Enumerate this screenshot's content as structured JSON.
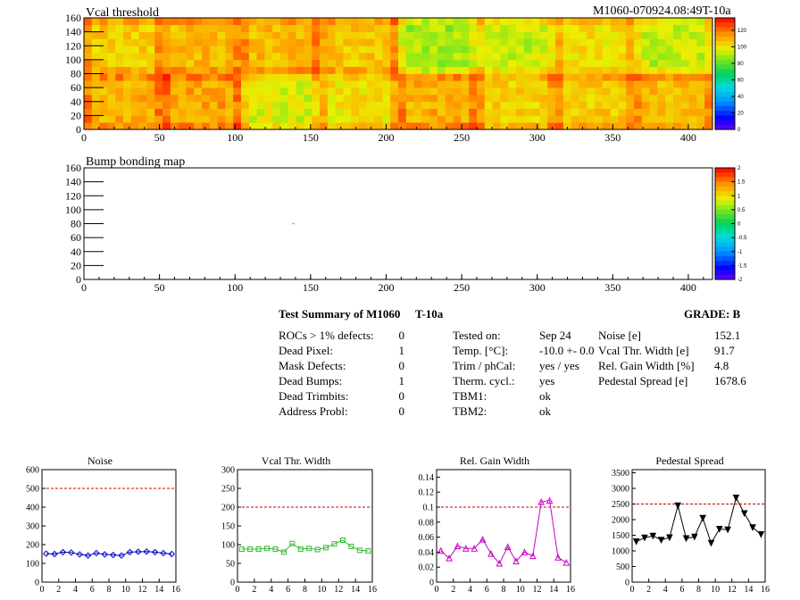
{
  "module_id": "M1060-070924.08:49T-10a",
  "summary": {
    "title": "Test Summary of M1060",
    "test_label": "T-10a",
    "grade": "GRADE:  B",
    "left": [
      {
        "label": "ROCs > 1% defects:",
        "value": "0"
      },
      {
        "label": "Dead Pixel:",
        "value": "1"
      },
      {
        "label": "Mask Defects:",
        "value": "0"
      },
      {
        "label": "Dead Bumps:",
        "value": "1"
      },
      {
        "label": "Dead Trimbits:",
        "value": "0"
      },
      {
        "label": "Address Probl:",
        "value": "0"
      }
    ],
    "middle": [
      {
        "label": "Tested on:",
        "value": "Sep 24"
      },
      {
        "label": "Temp. [°C]:",
        "value": "-10.0 +- 0.0"
      },
      {
        "label": "Trim / phCal:",
        "value": "yes / yes"
      },
      {
        "label": "Therm. cycl.:",
        "value": "yes"
      },
      {
        "label": "TBM1:",
        "value": "ok"
      },
      {
        "label": "TBM2:",
        "value": "ok"
      }
    ],
    "right": [
      {
        "label": "Noise [e]",
        "value": "152.1"
      },
      {
        "label": "Vcal Thr. Width [e]",
        "value": "91.7"
      },
      {
        "label": "Rel. Gain Width [%]",
        "value": "4.8"
      },
      {
        "label": "Pedestal Spread [e]",
        "value": "1678.6"
      }
    ]
  },
  "chart_data": [
    {
      "type": "heatmap",
      "title": "Vcal threshold",
      "x_ticks": [
        0,
        50,
        100,
        150,
        200,
        250,
        300,
        350,
        400
      ],
      "y_ticks": [
        0,
        20,
        40,
        60,
        80,
        100,
        120,
        140,
        160
      ],
      "xlim": [
        0,
        416
      ],
      "ylim": [
        0,
        160
      ],
      "colorbar": {
        "ticks": [
          "0",
          "20",
          "40",
          "60",
          "80",
          "100",
          "120"
        ],
        "range": [
          0,
          135
        ]
      },
      "roc_means": [
        [
          110,
          112,
          95,
          100,
          110,
          103,
          105,
          107
        ],
        [
          105,
          108,
          108,
          106,
          88,
          93,
          100,
          92
        ]
      ]
    },
    {
      "type": "heatmap",
      "title": "Bump bonding map",
      "x_ticks": [
        0,
        50,
        100,
        150,
        200,
        250,
        300,
        350,
        400
      ],
      "y_ticks": [
        0,
        20,
        40,
        60,
        80,
        100,
        120,
        140,
        160
      ],
      "xlim": [
        0,
        416
      ],
      "ylim": [
        0,
        160
      ],
      "colorbar": {
        "ticks": [
          "2",
          "1.5",
          "1",
          "0.5",
          "0",
          "-0.5",
          "-1",
          "-1.5",
          "-2"
        ],
        "range": [
          -2,
          2
        ]
      },
      "points": [
        {
          "x": 138,
          "y": 80,
          "value": 0.2
        }
      ]
    },
    {
      "type": "line",
      "title": "Noise",
      "x_ticks": [
        0,
        2,
        4,
        6,
        8,
        10,
        12,
        14,
        16
      ],
      "y_ticks": [
        0,
        100,
        200,
        300,
        400,
        500,
        600
      ],
      "xlim": [
        0,
        16
      ],
      "ylim": [
        0,
        600
      ],
      "threshold": 500,
      "color": "#0000cc",
      "marker": "diamond",
      "x": [
        0.5,
        1.5,
        2.5,
        3.5,
        4.5,
        5.5,
        6.5,
        7.5,
        8.5,
        9.5,
        10.5,
        11.5,
        12.5,
        13.5,
        14.5,
        15.5
      ],
      "values": [
        152,
        150,
        160,
        158,
        148,
        142,
        155,
        148,
        145,
        142,
        160,
        162,
        163,
        160,
        155,
        150
      ]
    },
    {
      "type": "line",
      "title": "Vcal Thr. Width",
      "x_ticks": [
        0,
        2,
        4,
        6,
        8,
        10,
        12,
        14,
        16
      ],
      "y_ticks": [
        0,
        50,
        100,
        150,
        200,
        250,
        300
      ],
      "xlim": [
        0,
        16
      ],
      "ylim": [
        0,
        300
      ],
      "threshold": 200,
      "color": "#33bb33",
      "marker": "square",
      "x": [
        0.5,
        1.5,
        2.5,
        3.5,
        4.5,
        5.5,
        6.5,
        7.5,
        8.5,
        9.5,
        10.5,
        11.5,
        12.5,
        13.5,
        14.5,
        15.5
      ],
      "values": [
        88,
        88,
        88,
        90,
        88,
        80,
        103,
        88,
        90,
        87,
        92,
        102,
        112,
        95,
        85,
        83
      ]
    },
    {
      "type": "line",
      "title": "Rel. Gain Width",
      "x_ticks": [
        0,
        2,
        4,
        6,
        8,
        10,
        12,
        14,
        16
      ],
      "y_ticks": [
        "0",
        "0.02",
        "0.04",
        "0.06",
        "0.08",
        "0.1",
        "0.12",
        "0.14"
      ],
      "xlim": [
        0,
        16
      ],
      "ylim": [
        0,
        0.15
      ],
      "threshold": 0.1,
      "color": "#cc00cc",
      "marker": "triangle",
      "x": [
        0.5,
        1.5,
        2.5,
        3.5,
        4.5,
        5.5,
        6.5,
        7.5,
        8.5,
        9.5,
        10.5,
        11.5,
        12.5,
        13.5,
        14.5,
        15.5
      ],
      "values": [
        0.042,
        0.032,
        0.048,
        0.045,
        0.045,
        0.057,
        0.038,
        0.025,
        0.047,
        0.028,
        0.04,
        0.035,
        0.107,
        0.109,
        0.033,
        0.026
      ]
    },
    {
      "type": "line",
      "title": "Pedestal Spread",
      "x_ticks": [
        0,
        2,
        4,
        6,
        8,
        10,
        12,
        14,
        16
      ],
      "y_ticks": [
        0,
        500,
        1000,
        1500,
        2000,
        2500,
        3000,
        3500
      ],
      "xlim": [
        0,
        16
      ],
      "ylim": [
        0,
        3600
      ],
      "threshold": 2500,
      "color": "#000000",
      "marker": "triangle-down",
      "x": [
        0.5,
        1.5,
        2.5,
        3.5,
        4.5,
        5.5,
        6.5,
        7.5,
        8.5,
        9.5,
        10.5,
        11.5,
        12.5,
        13.5,
        14.5,
        15.5
      ],
      "values": [
        1300,
        1420,
        1480,
        1350,
        1430,
        2450,
        1400,
        1450,
        2050,
        1250,
        1700,
        1680,
        2700,
        2200,
        1750,
        1530
      ]
    }
  ]
}
